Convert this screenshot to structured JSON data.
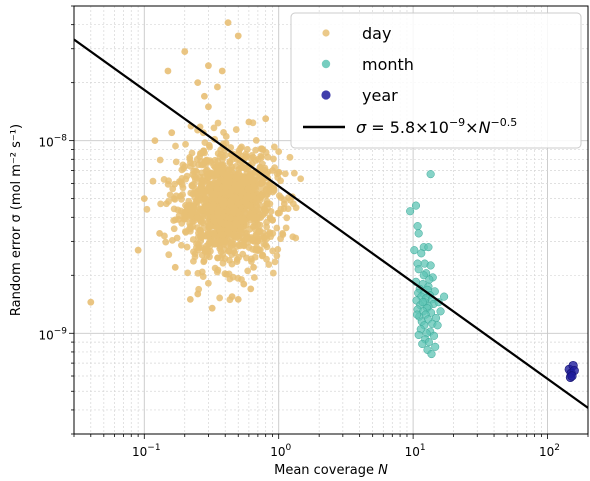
{
  "chart_data": {
    "type": "scatter",
    "x_scale": "log",
    "y_scale": "log",
    "xlim": [
      0.03,
      200
    ],
    "ylim": [
      3e-10,
      5e-08
    ],
    "grid": true,
    "grid_minor": true,
    "legend_position": "top-right",
    "xlabel": "Mean coverage N",
    "ylabel": "Random error σ (mol m⁻² s⁻¹)",
    "x_ticks": [
      {
        "value": 0.1,
        "base": "10",
        "exp": "−1"
      },
      {
        "value": 1,
        "base": "10",
        "exp": "0"
      },
      {
        "value": 10,
        "base": "10",
        "exp": "1"
      },
      {
        "value": 100,
        "base": "10",
        "exp": "2"
      }
    ],
    "y_ticks": [
      {
        "value": 1e-09,
        "base": "10",
        "exp": "−9"
      },
      {
        "value": 1e-08,
        "base": "10",
        "exp": "−8"
      }
    ],
    "series": [
      {
        "name": "day",
        "color": "#e8bf74",
        "cloud": {
          "x_center": 0.42,
          "x_spread": 0.32,
          "y_center": 4.6e-09,
          "y_spread": 0.38,
          "count": 1200
        },
        "points": [
          [
            0.04,
            1.45e-09
          ],
          [
            0.09,
            2.7e-09
          ],
          [
            0.12,
            1e-08
          ],
          [
            0.1,
            5e-09
          ],
          [
            0.15,
            2.3e-08
          ],
          [
            0.2,
            2.9e-08
          ],
          [
            0.42,
            4.1e-08
          ],
          [
            0.16,
            1.1e-08
          ],
          [
            0.3,
            1.5e-08
          ],
          [
            0.35,
            1.9e-08
          ],
          [
            0.28,
            1.7e-08
          ],
          [
            0.6,
            1.25e-08
          ],
          [
            0.8,
            1.3e-08
          ],
          [
            0.9,
            7e-09
          ],
          [
            1.1,
            4.7e-09
          ],
          [
            0.22,
            1.5e-09
          ],
          [
            0.25,
            1.6e-09
          ],
          [
            0.32,
            1.35e-09
          ],
          [
            0.5,
            1.5e-09
          ],
          [
            0.55,
            1.8e-09
          ],
          [
            0.45,
            1.55e-09
          ],
          [
            0.17,
            2.2e-09
          ],
          [
            0.7,
            3e-09
          ],
          [
            0.65,
            2.2e-09
          ],
          [
            0.75,
            6e-09
          ],
          [
            0.3,
            2.45e-08
          ],
          [
            0.25,
            2e-08
          ],
          [
            0.38,
            2.3e-08
          ],
          [
            0.18,
            3.9e-09
          ],
          [
            0.13,
            3.3e-09
          ],
          [
            0.62,
            1.7e-09
          ],
          [
            0.5,
            3.5e-08
          ]
        ]
      },
      {
        "name": "month",
        "color": "#5ec4b4",
        "points": [
          [
            13.5,
            6.7e-09
          ],
          [
            9.5,
            4.3e-09
          ],
          [
            10.5,
            4.6e-09
          ],
          [
            10.8,
            3.6e-09
          ],
          [
            11.0,
            3.3e-09
          ],
          [
            10.2,
            2.7e-09
          ],
          [
            12.0,
            2.8e-09
          ],
          [
            13.0,
            2.8e-09
          ],
          [
            11.5,
            2.6e-09
          ],
          [
            10.8,
            2.3e-09
          ],
          [
            12.2,
            2.3e-09
          ],
          [
            13.5,
            2.25e-09
          ],
          [
            11.0,
            2.15e-09
          ],
          [
            12.5,
            2.05e-09
          ],
          [
            14.0,
            1.95e-09
          ],
          [
            10.5,
            1.85e-09
          ],
          [
            11.8,
            1.8e-09
          ],
          [
            13.0,
            1.75e-09
          ],
          [
            11.2,
            1.7e-09
          ],
          [
            12.8,
            1.68e-09
          ],
          [
            14.5,
            1.65e-09
          ],
          [
            10.9,
            1.62e-09
          ],
          [
            12.0,
            1.6e-09
          ],
          [
            13.3,
            1.58e-09
          ],
          [
            11.5,
            1.55e-09
          ],
          [
            12.5,
            1.52e-09
          ],
          [
            13.8,
            1.5e-09
          ],
          [
            10.6,
            1.48e-09
          ],
          [
            12.2,
            1.45e-09
          ],
          [
            14.2,
            1.42e-09
          ],
          [
            11.3,
            1.4e-09
          ],
          [
            13.0,
            1.38e-09
          ],
          [
            12.7,
            1.35e-09
          ],
          [
            10.8,
            1.33e-09
          ],
          [
            15.5,
            1.45e-09
          ],
          [
            17.0,
            1.55e-09
          ],
          [
            11.9,
            1.3e-09
          ],
          [
            13.6,
            1.28e-09
          ],
          [
            12.4,
            1.25e-09
          ],
          [
            11.1,
            1.22e-09
          ],
          [
            14.8,
            1.2e-09
          ],
          [
            12.9,
            1.18e-09
          ],
          [
            11.6,
            1.15e-09
          ],
          [
            13.9,
            1.12e-09
          ],
          [
            12.1,
            1.1e-09
          ],
          [
            15.2,
            1.1e-09
          ],
          [
            11.4,
            1.05e-09
          ],
          [
            13.4,
            1.02e-09
          ],
          [
            12.6,
            1e-09
          ],
          [
            11.0,
            9.8e-10
          ],
          [
            14.3,
            9.7e-10
          ],
          [
            12.3,
            9.3e-10
          ],
          [
            13.1,
            9e-10
          ],
          [
            11.7,
            8.8e-10
          ],
          [
            14.6,
            8.5e-10
          ],
          [
            12.8,
            8.2e-10
          ],
          [
            13.7,
            7.8e-10
          ],
          [
            10.7,
            1.25e-09
          ],
          [
            16.0,
            1.3e-09
          ],
          [
            12.0,
            2e-09
          ],
          [
            13.2,
            1.9e-09
          ],
          [
            11.8,
            1.45e-09
          ]
        ]
      },
      {
        "name": "year",
        "color": "#1e1b9c",
        "points": [
          [
            145,
            6.5e-10
          ],
          [
            150,
            6.2e-10
          ],
          [
            155,
            6.8e-10
          ],
          [
            148,
            5.9e-10
          ],
          [
            158,
            6.4e-10
          ],
          [
            152,
            6e-10
          ]
        ]
      },
      {
        "name": "fit",
        "legend_label": "σ = 5.8×10⁻⁹×N⁻⁰·⁵",
        "legend_math": {
          "lhs": "σ = 5.8×10",
          "exp1": "−9",
          "mid": "×",
          "var": "N",
          "exp2": "−0.5"
        },
        "color": "#000000",
        "kind": "line",
        "coefficient": 5.8e-09,
        "exponent": -0.5
      }
    ]
  }
}
